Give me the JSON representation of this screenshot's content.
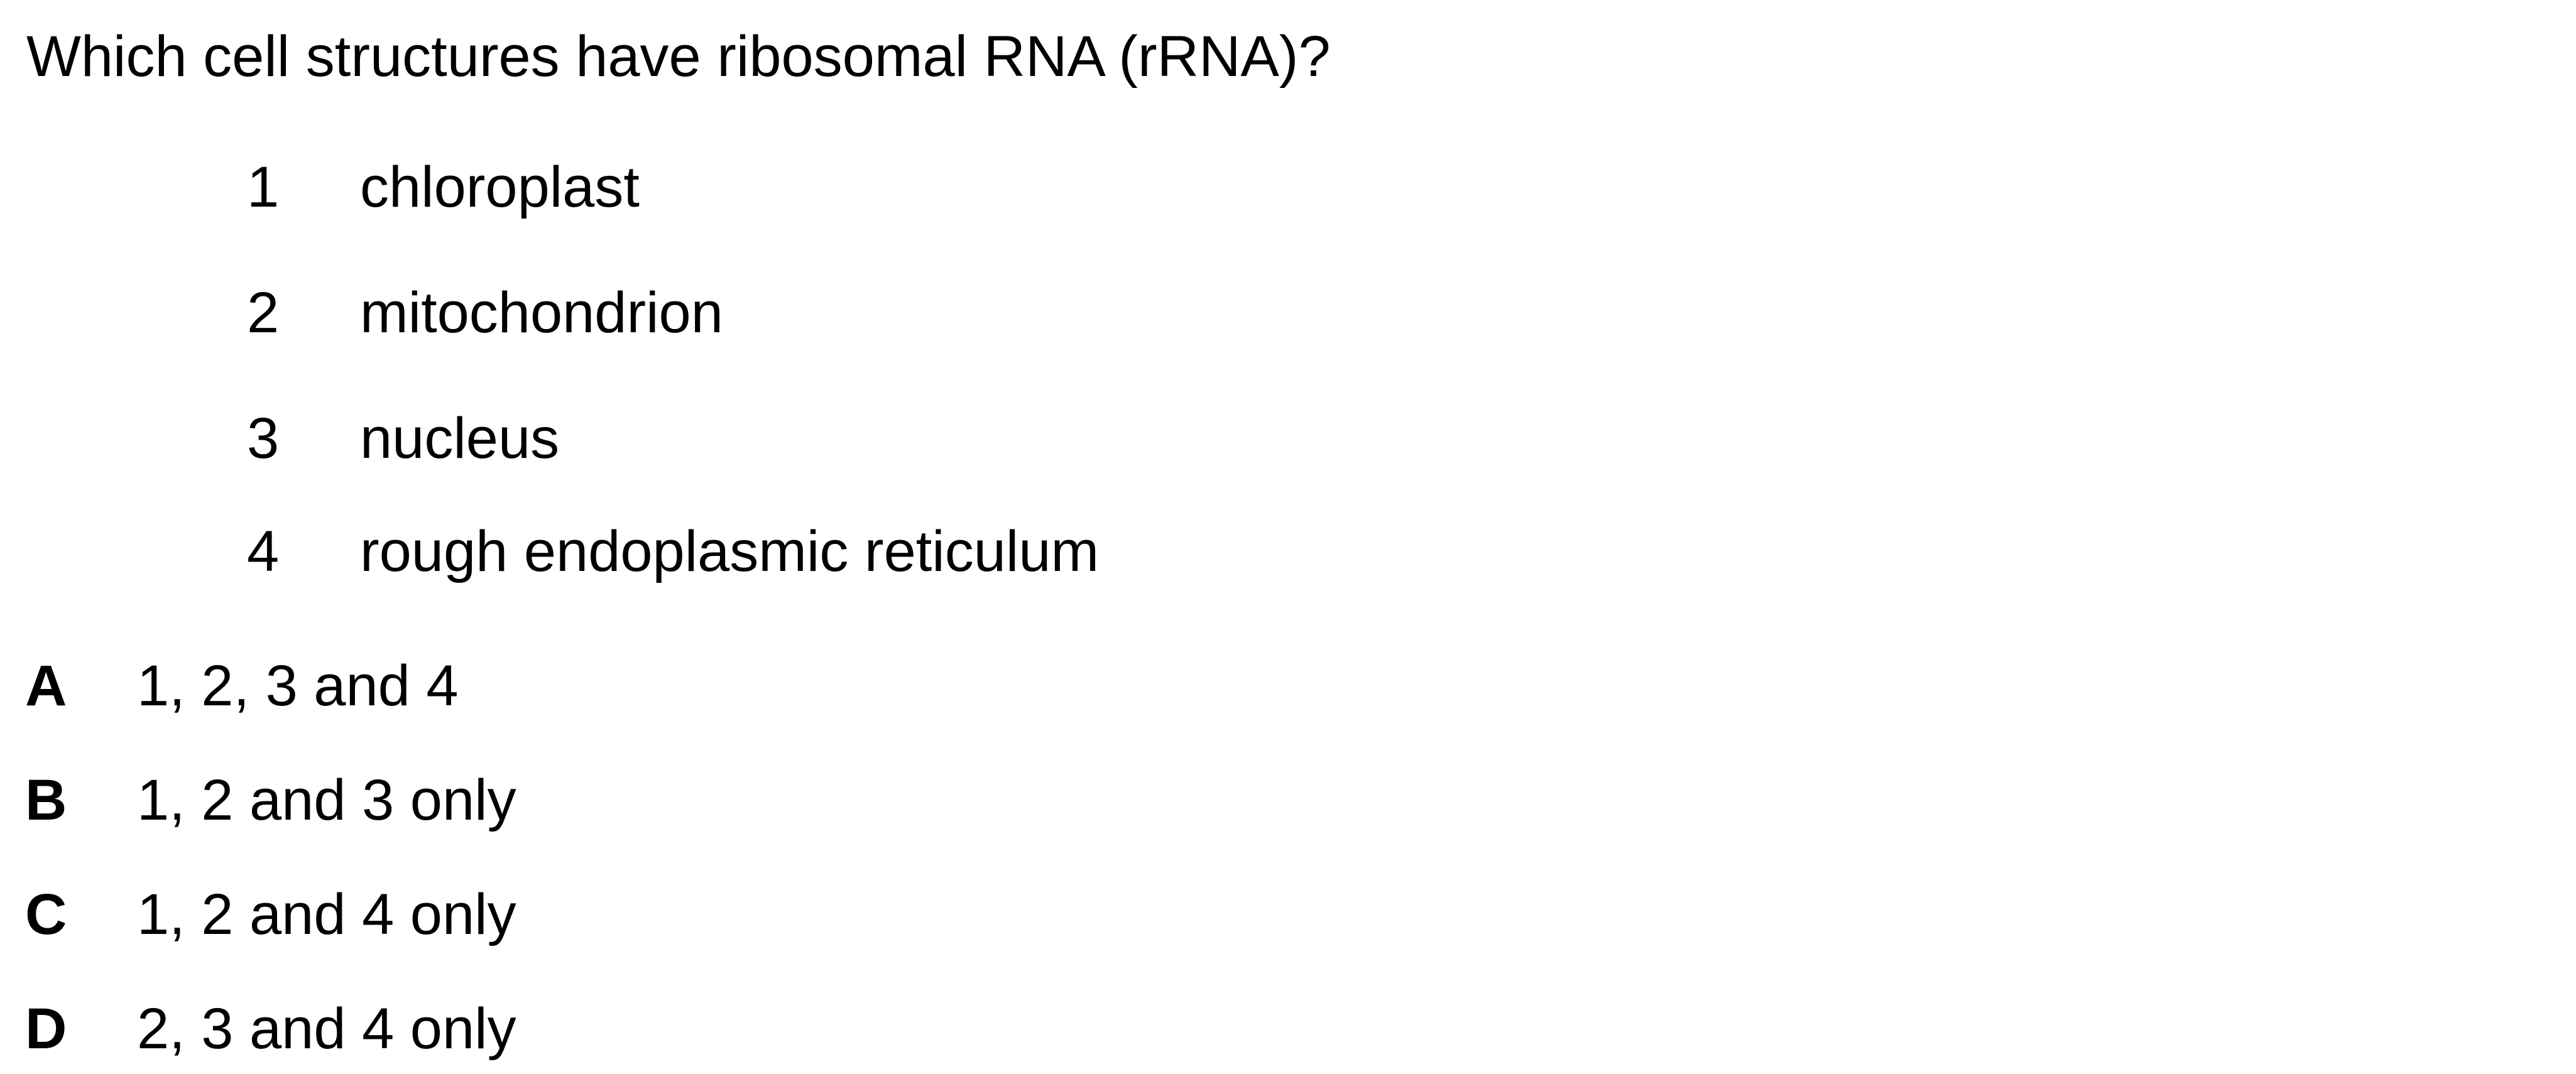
{
  "question": {
    "stem": "Which cell structures have ribosomal RNA (rRNA)?"
  },
  "statements": [
    {
      "number": "1",
      "text": "chloroplast"
    },
    {
      "number": "2",
      "text": "mitochondrion"
    },
    {
      "number": "3",
      "text": "nucleus"
    },
    {
      "number": "4",
      "text": "rough endoplasmic reticulum"
    }
  ],
  "options": [
    {
      "letter": "A",
      "text": "1, 2, 3 and 4"
    },
    {
      "letter": "B",
      "text": "1, 2 and 3 only"
    },
    {
      "letter": "C",
      "text": "1, 2 and 4 only"
    },
    {
      "letter": "D",
      "text": "2, 3 and 4 only"
    }
  ]
}
